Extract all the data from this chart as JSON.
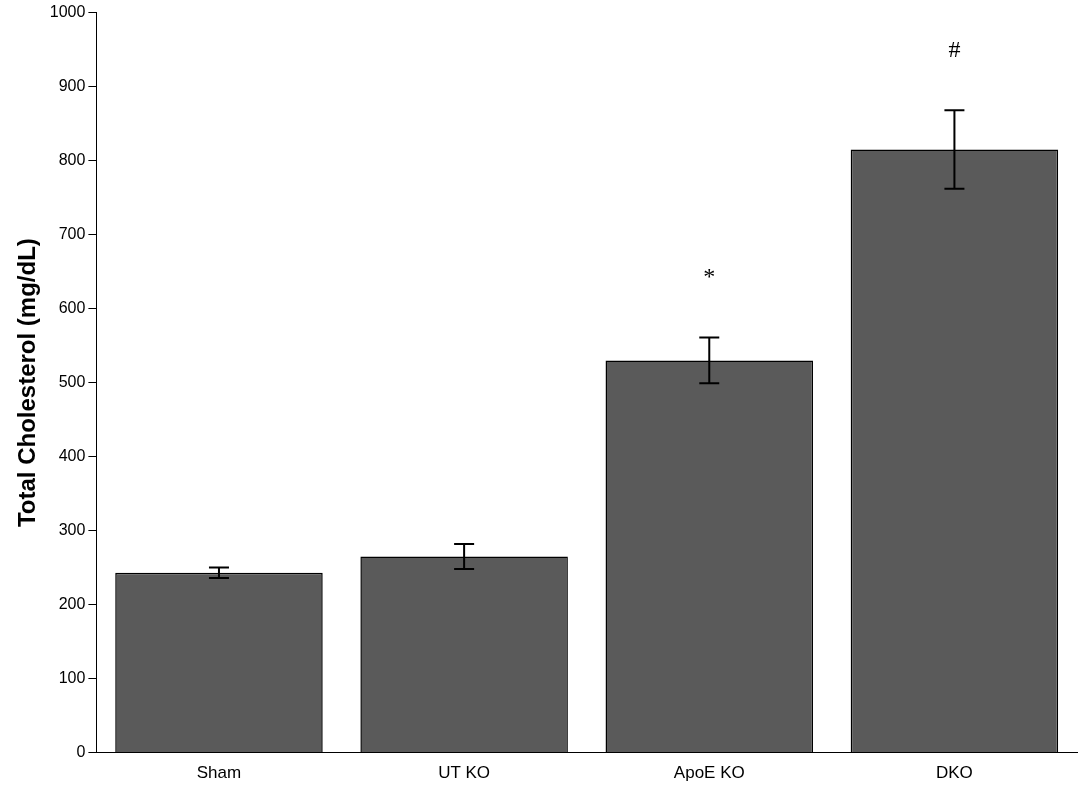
{
  "chart_data": {
    "type": "bar",
    "ylabel": "Total Cholesterol (mg/dL)",
    "categories": [
      "Sham",
      "UT KO",
      "ApoE KO",
      "DKO"
    ],
    "values": [
      243,
      265,
      530,
      815
    ],
    "errors": [
      7,
      17,
      31,
      53
    ],
    "color": "#5a5a5a",
    "ylim": [
      0,
      1000
    ],
    "yticks": [
      0,
      100,
      200,
      300,
      400,
      500,
      600,
      700,
      800,
      900,
      1000
    ],
    "grid": false,
    "legend": false,
    "annotations": [
      "*",
      "#"
    ]
  }
}
